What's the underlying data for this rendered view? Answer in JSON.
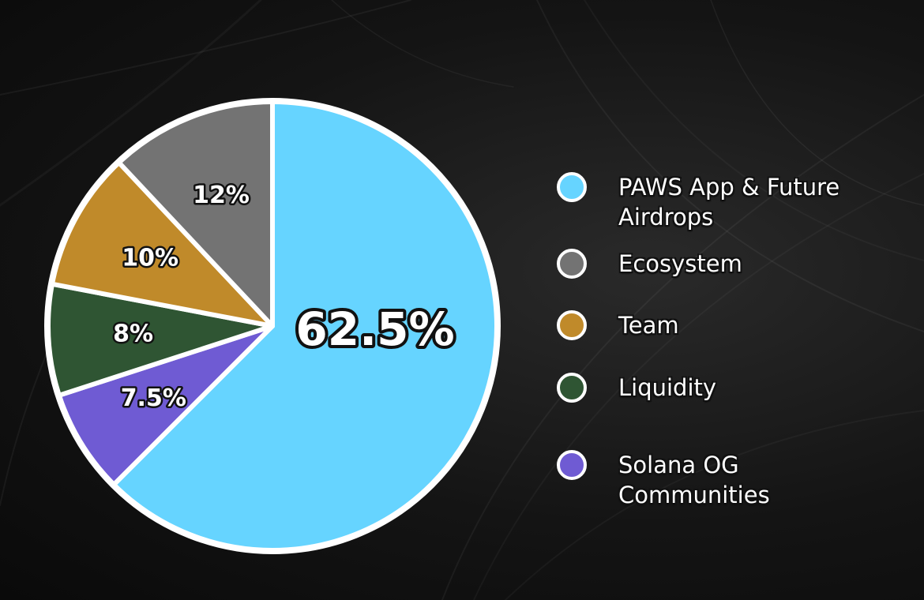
{
  "chart_data": {
    "type": "pie",
    "slices": [
      {
        "label": "PAWS App  & Future Airdrops",
        "value": 62.5,
        "value_label": "62.5%",
        "color": "#66d4ff"
      },
      {
        "label": "Solana OG Communities",
        "value": 7.5,
        "value_label": "7.5%",
        "color": "#6f5bd3"
      },
      {
        "label": "Liquidity",
        "value": 8,
        "value_label": "8%",
        "color": "#2f5533"
      },
      {
        "label": "Team",
        "value": 10,
        "value_label": "10%",
        "color": "#c08a2a"
      },
      {
        "label": "Ecosystem",
        "value": 12,
        "value_label": "12%",
        "color": "#737373"
      }
    ],
    "legend": {
      "position": "right",
      "items": [
        {
          "label": "PAWS App  & Future Airdrops",
          "color": "#66d4ff"
        },
        {
          "label": "Ecosystem",
          "color": "#737373"
        },
        {
          "label": "Team",
          "color": "#c08a2a"
        },
        {
          "label": "Liquidity",
          "color": "#2f5533"
        },
        {
          "label": "Solana OG Communities",
          "color": "#6f5bd3"
        }
      ]
    }
  },
  "colors": {
    "background": "#141414",
    "slice_border": "#ffffff"
  }
}
